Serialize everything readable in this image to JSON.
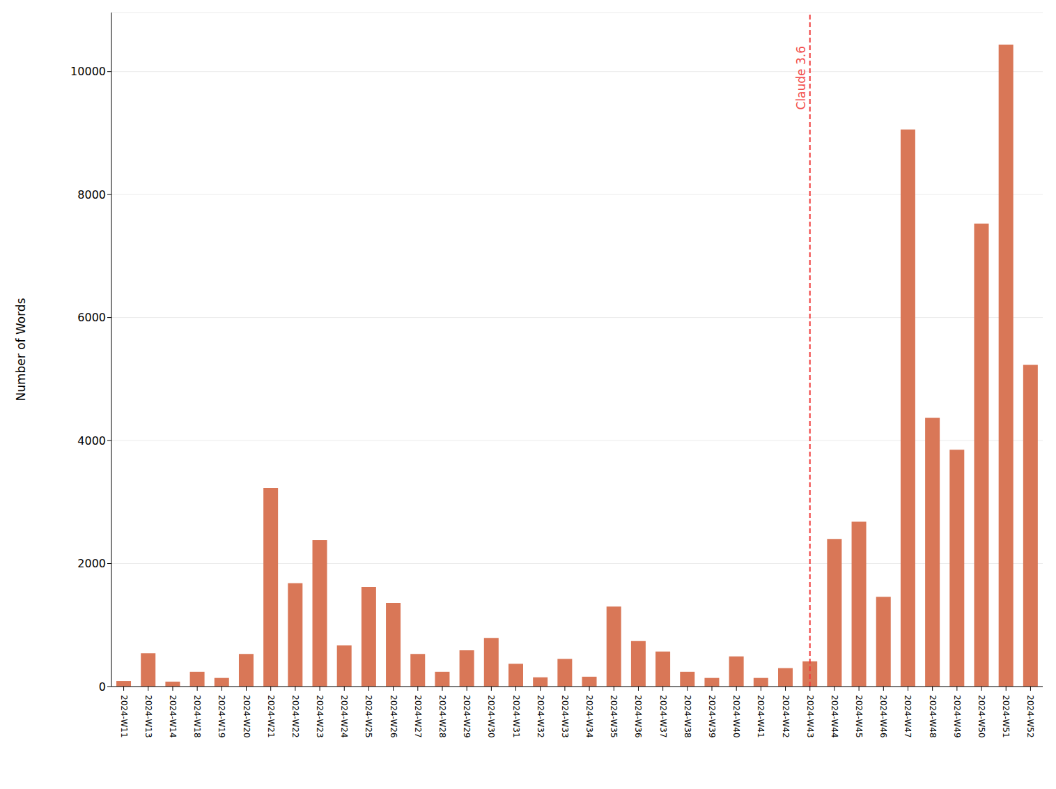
{
  "chart_data": {
    "type": "bar",
    "y_label": "Number of Words",
    "categories": [
      "2024-W11",
      "2024-W13",
      "2024-W14",
      "2024-W18",
      "2024-W19",
      "2024-W20",
      "2024-W21",
      "2024-W22",
      "2024-W23",
      "2024-W24",
      "2024-W25",
      "2024-W26",
      "2024-W27",
      "2024-W28",
      "2024-W29",
      "2024-W30",
      "2024-W31",
      "2024-W32",
      "2024-W33",
      "2024-W34",
      "2024-W35",
      "2024-W36",
      "2024-W37",
      "2024-W38",
      "2024-W39",
      "2024-W40",
      "2024-W41",
      "2024-W42",
      "2024-W43",
      "2024-W44",
      "2024-W45",
      "2024-W46",
      "2024-W47",
      "2024-W48",
      "2024-W49",
      "2024-W50",
      "2024-W51",
      "2024-W52"
    ],
    "values": [
      90,
      540,
      80,
      240,
      140,
      530,
      3230,
      1680,
      2380,
      670,
      1620,
      1360,
      530,
      240,
      590,
      790,
      370,
      150,
      450,
      160,
      1300,
      740,
      570,
      240,
      140,
      490,
      140,
      300,
      410,
      2400,
      2680,
      1460,
      9060,
      4370,
      3850,
      7530,
      10440,
      5230
    ],
    "color": "#d97757",
    "ylim": [
      0,
      10960
    ],
    "yticks": [
      0,
      2000,
      4000,
      6000,
      8000,
      10000
    ],
    "grid": true,
    "annotations": [
      {
        "text": "Claude 3.6",
        "x": "2024-W43"
      }
    ]
  }
}
